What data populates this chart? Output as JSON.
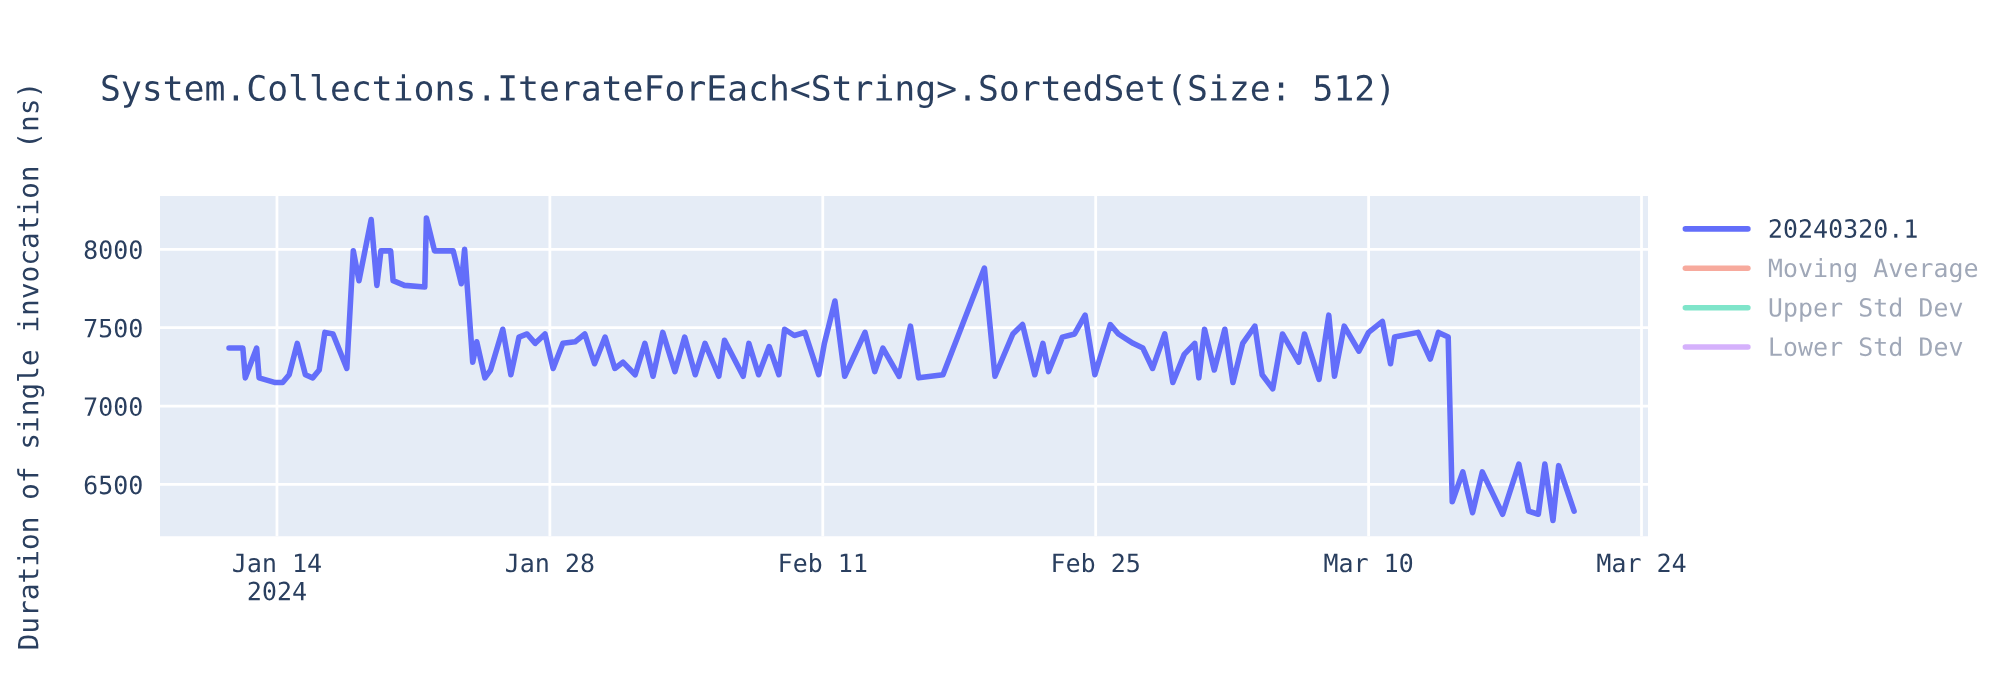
{
  "chart_data": {
    "type": "line",
    "title": "System.Collections.IterateForEach<String>.SortedSet(Size: 512)",
    "ylabel": "Duration of single invocation (ns)",
    "x": [
      "2024-01-11T13:00",
      "2024-01-12T06:00",
      "2024-01-12T09:00",
      "2024-01-12T23:00",
      "2024-01-13T02:00",
      "2024-01-13T22:00",
      "2024-01-14T07:00",
      "2024-01-14T15:00",
      "2024-01-15T01:00",
      "2024-01-15T11:00",
      "2024-01-15T20:00",
      "2024-01-16T04:00",
      "2024-01-16T11:00",
      "2024-01-16T21:00",
      "2024-01-17T14:00",
      "2024-01-17T22:00",
      "2024-01-18T05:00",
      "2024-01-18T20:00",
      "2024-01-19T03:00",
      "2024-01-19T08:00",
      "2024-01-19T20:00",
      "2024-01-19T23:00",
      "2024-01-20T13:00",
      "2024-01-21T14:00",
      "2024-01-21T16:00",
      "2024-01-22T02:00",
      "2024-01-23T01:00",
      "2024-01-23T11:00",
      "2024-01-23T15:00",
      "2024-01-24T01:00",
      "2024-01-24T06:00",
      "2024-01-24T16:00",
      "2024-01-24T23:00",
      "2024-01-25T14:00",
      "2024-01-26T00:00",
      "2024-01-26T10:00",
      "2024-01-26T20:00",
      "2024-01-27T06:00",
      "2024-01-27T18:00",
      "2024-01-28T04:00",
      "2024-01-28T16:00",
      "2024-01-29T07:00",
      "2024-01-29T19:00",
      "2024-01-30T07:00",
      "2024-01-30T20:00",
      "2024-01-31T08:00",
      "2024-01-31T18:00",
      "2024-02-01T09:00",
      "2024-02-01T21:00",
      "2024-02-02T07:00",
      "2024-02-02T19:00",
      "2024-02-03T10:00",
      "2024-02-03T22:00",
      "2024-02-04T11:00",
      "2024-02-04T23:00",
      "2024-02-05T16:00",
      "2024-02-05T23:00",
      "2024-02-06T22:00",
      "2024-02-07T05:00",
      "2024-02-07T17:00",
      "2024-02-08T06:00",
      "2024-02-08T18:00",
      "2024-02-09T01:00",
      "2024-02-09T13:00",
      "2024-02-10T02:00",
      "2024-02-10T19:00",
      "2024-02-11T02:00",
      "2024-02-11T15:00",
      "2024-02-12T03:00",
      "2024-02-13T04:00",
      "2024-02-13T16:00",
      "2024-02-14T02:00",
      "2024-02-14T22:00",
      "2024-02-15T12:00",
      "2024-02-15T22:00",
      "2024-02-17T04:00",
      "2024-02-19T07:00",
      "2024-02-19T20:00",
      "2024-02-20T18:00",
      "2024-02-21T06:00",
      "2024-02-21T21:00",
      "2024-02-22T07:00",
      "2024-02-22T14:00",
      "2024-02-23T07:00",
      "2024-02-23T22:00",
      "2024-02-24T11:00",
      "2024-02-24T23:00",
      "2024-02-25T18:00",
      "2024-02-26T04:00",
      "2024-02-26T22:00",
      "2024-02-27T10:00",
      "2024-02-27T22:00",
      "2024-02-28T13:00",
      "2024-02-28T23:00",
      "2024-02-29T13:00",
      "2024-03-01T02:00",
      "2024-03-01T07:00",
      "2024-03-01T14:00",
      "2024-03-02T02:00",
      "2024-03-02T15:00",
      "2024-03-03T01:00",
      "2024-03-03T13:00",
      "2024-03-04T04:00",
      "2024-03-04T13:00",
      "2024-03-05T02:00",
      "2024-03-05T14:00",
      "2024-03-06T10:00",
      "2024-03-06T17:00",
      "2024-03-07T11:00",
      "2024-03-07T23:00",
      "2024-03-08T06:00",
      "2024-03-08T18:00",
      "2024-03-09T12:00",
      "2024-03-10T00:00",
      "2024-03-10T17:00",
      "2024-03-11T03:00",
      "2024-03-11T08:00",
      "2024-03-12T13:00",
      "2024-03-13T04:00",
      "2024-03-13T14:00",
      "2024-03-14T02:00",
      "2024-03-14T07:00",
      "2024-03-14T20:00",
      "2024-03-15T08:00",
      "2024-03-15T20:00",
      "2024-03-16T09:00",
      "2024-03-16T21:00",
      "2024-03-17T17:00",
      "2024-03-18T05:00",
      "2024-03-18T17:00",
      "2024-03-19T01:00",
      "2024-03-19T11:00",
      "2024-03-19T18:00",
      "2024-03-20T13:00"
    ],
    "series": [
      {
        "name": "20240320.1",
        "color": "#636efa",
        "values": [
          7370,
          7370,
          7180,
          7370,
          7180,
          7150,
          7150,
          7200,
          7400,
          7200,
          7180,
          7230,
          7470,
          7460,
          7240,
          7990,
          7800,
          8190,
          7770,
          7990,
          7990,
          7800,
          7770,
          7760,
          8200,
          7990,
          7990,
          7780,
          8000,
          7280,
          7410,
          7180,
          7230,
          7490,
          7200,
          7440,
          7460,
          7400,
          7460,
          7240,
          7400,
          7410,
          7460,
          7270,
          7440,
          7240,
          7280,
          7200,
          7400,
          7190,
          7470,
          7220,
          7440,
          7200,
          7400,
          7190,
          7420,
          7190,
          7400,
          7200,
          7380,
          7200,
          7490,
          7450,
          7470,
          7200,
          7400,
          7670,
          7190,
          7470,
          7220,
          7370,
          7190,
          7510,
          7180,
          7200,
          7880,
          7190,
          7460,
          7520,
          7200,
          7400,
          7220,
          7440,
          7460,
          7580,
          7200,
          7520,
          7460,
          7400,
          7370,
          7240,
          7460,
          7150,
          7330,
          7400,
          7180,
          7490,
          7230,
          7490,
          7150,
          7400,
          7510,
          7200,
          7110,
          7460,
          7280,
          7460,
          7170,
          7580,
          7190,
          7510,
          7350,
          7470,
          7540,
          7270,
          7440,
          7470,
          7300,
          7470,
          7440,
          6390,
          6580,
          6320,
          6580,
          6440,
          6310,
          6630,
          6330,
          6310,
          6630,
          6270,
          6620,
          6330
        ]
      },
      {
        "name": "Moving Average",
        "color": "#ef553b",
        "values": [
          null,
          null,
          null,
          null,
          null,
          null,
          null,
          null,
          null,
          null,
          null,
          null,
          null,
          null,
          null,
          null,
          null,
          null,
          null,
          null,
          null,
          null,
          null,
          null,
          null,
          null,
          null,
          null,
          null,
          null,
          null,
          null,
          null,
          null,
          null,
          null,
          null,
          null,
          null,
          null,
          null,
          null,
          null,
          null,
          null,
          null,
          null,
          null,
          null,
          null,
          null,
          null,
          null,
          null,
          null,
          null,
          null,
          null,
          null,
          null,
          null,
          null,
          null,
          null,
          null,
          null,
          null,
          null,
          null,
          null,
          null,
          null,
          null,
          null,
          null,
          null,
          null,
          null,
          null,
          null,
          null,
          null,
          null,
          null,
          null,
          null,
          null,
          null,
          null,
          null,
          null,
          null,
          null,
          null,
          null,
          null,
          null,
          null,
          null,
          null,
          null,
          null,
          null,
          null,
          null,
          null,
          null,
          null,
          null,
          null,
          null,
          null,
          null,
          null,
          null,
          null,
          null,
          null,
          null,
          null,
          null,
          null,
          null,
          null,
          null,
          null,
          null,
          null,
          null,
          null,
          null,
          null,
          null,
          null
        ]
      },
      {
        "name": "Upper Std Dev",
        "color": "#00cc96",
        "values": [
          null,
          null,
          null,
          null,
          null,
          null,
          null,
          null,
          null,
          null,
          null,
          null,
          null,
          null,
          null,
          null,
          null,
          null,
          null,
          null,
          null,
          null,
          null,
          null,
          null,
          null,
          null,
          null,
          null,
          null,
          null,
          null,
          null,
          null,
          null,
          null,
          null,
          null,
          null,
          null,
          null,
          null,
          null,
          null,
          null,
          null,
          null,
          null,
          null,
          null,
          null,
          null,
          null,
          null,
          null,
          null,
          null,
          null,
          null,
          null,
          null,
          null,
          null,
          null,
          null,
          null,
          null,
          null,
          null,
          null,
          null,
          null,
          null,
          null,
          null,
          null,
          null,
          null,
          null,
          null,
          null,
          null,
          null,
          null,
          null,
          null,
          null,
          null,
          null,
          null,
          null,
          null,
          null,
          null,
          null,
          null,
          null,
          null,
          null,
          null,
          null,
          null,
          null,
          null,
          null,
          null,
          null,
          null,
          null,
          null,
          null,
          null,
          null,
          null,
          null,
          null,
          null,
          null,
          null,
          null,
          null,
          null,
          null,
          null,
          null,
          null,
          null,
          null,
          null,
          null,
          null,
          null,
          null,
          null
        ]
      },
      {
        "name": "Lower Std Dev",
        "color": "#ab63fa",
        "values": [
          null,
          null,
          null,
          null,
          null,
          null,
          null,
          null,
          null,
          null,
          null,
          null,
          null,
          null,
          null,
          null,
          null,
          null,
          null,
          null,
          null,
          null,
          null,
          null,
          null,
          null,
          null,
          null,
          null,
          null,
          null,
          null,
          null,
          null,
          null,
          null,
          null,
          null,
          null,
          null,
          null,
          null,
          null,
          null,
          null,
          null,
          null,
          null,
          null,
          null,
          null,
          null,
          null,
          null,
          null,
          null,
          null,
          null,
          null,
          null,
          null,
          null,
          null,
          null,
          null,
          null,
          null,
          null,
          null,
          null,
          null,
          null,
          null,
          null,
          null,
          null,
          null,
          null,
          null,
          null,
          null,
          null,
          null,
          null,
          null,
          null,
          null,
          null,
          null,
          null,
          null,
          null,
          null,
          null,
          null,
          null,
          null,
          null,
          null,
          null,
          null,
          null,
          null,
          null,
          null,
          null,
          null,
          null,
          null,
          null,
          null,
          null,
          null,
          null,
          null,
          null,
          null,
          null,
          null,
          null,
          null,
          null,
          null,
          null,
          null,
          null,
          null,
          null,
          null,
          null,
          null,
          null,
          null,
          null
        ]
      }
    ],
    "xlim": [
      "2024-01-08",
      "2024-03-24T08:00"
    ],
    "xticks": [
      {
        "value": "2024-01-14",
        "label": "Jan 14\n2024"
      },
      {
        "value": "2024-01-28",
        "label": "Jan 28"
      },
      {
        "value": "2024-02-11",
        "label": "Feb 11"
      },
      {
        "value": "2024-02-25",
        "label": "Feb 25"
      },
      {
        "value": "2024-03-10",
        "label": "Mar 10"
      },
      {
        "value": "2024-03-24",
        "label": "Mar 24"
      }
    ],
    "ylim": [
      6170,
      8340
    ],
    "yticks": [
      6500,
      7000,
      7500,
      8000
    ],
    "grid": true,
    "legend": "right",
    "marker": "none",
    "line_style": "solid"
  }
}
